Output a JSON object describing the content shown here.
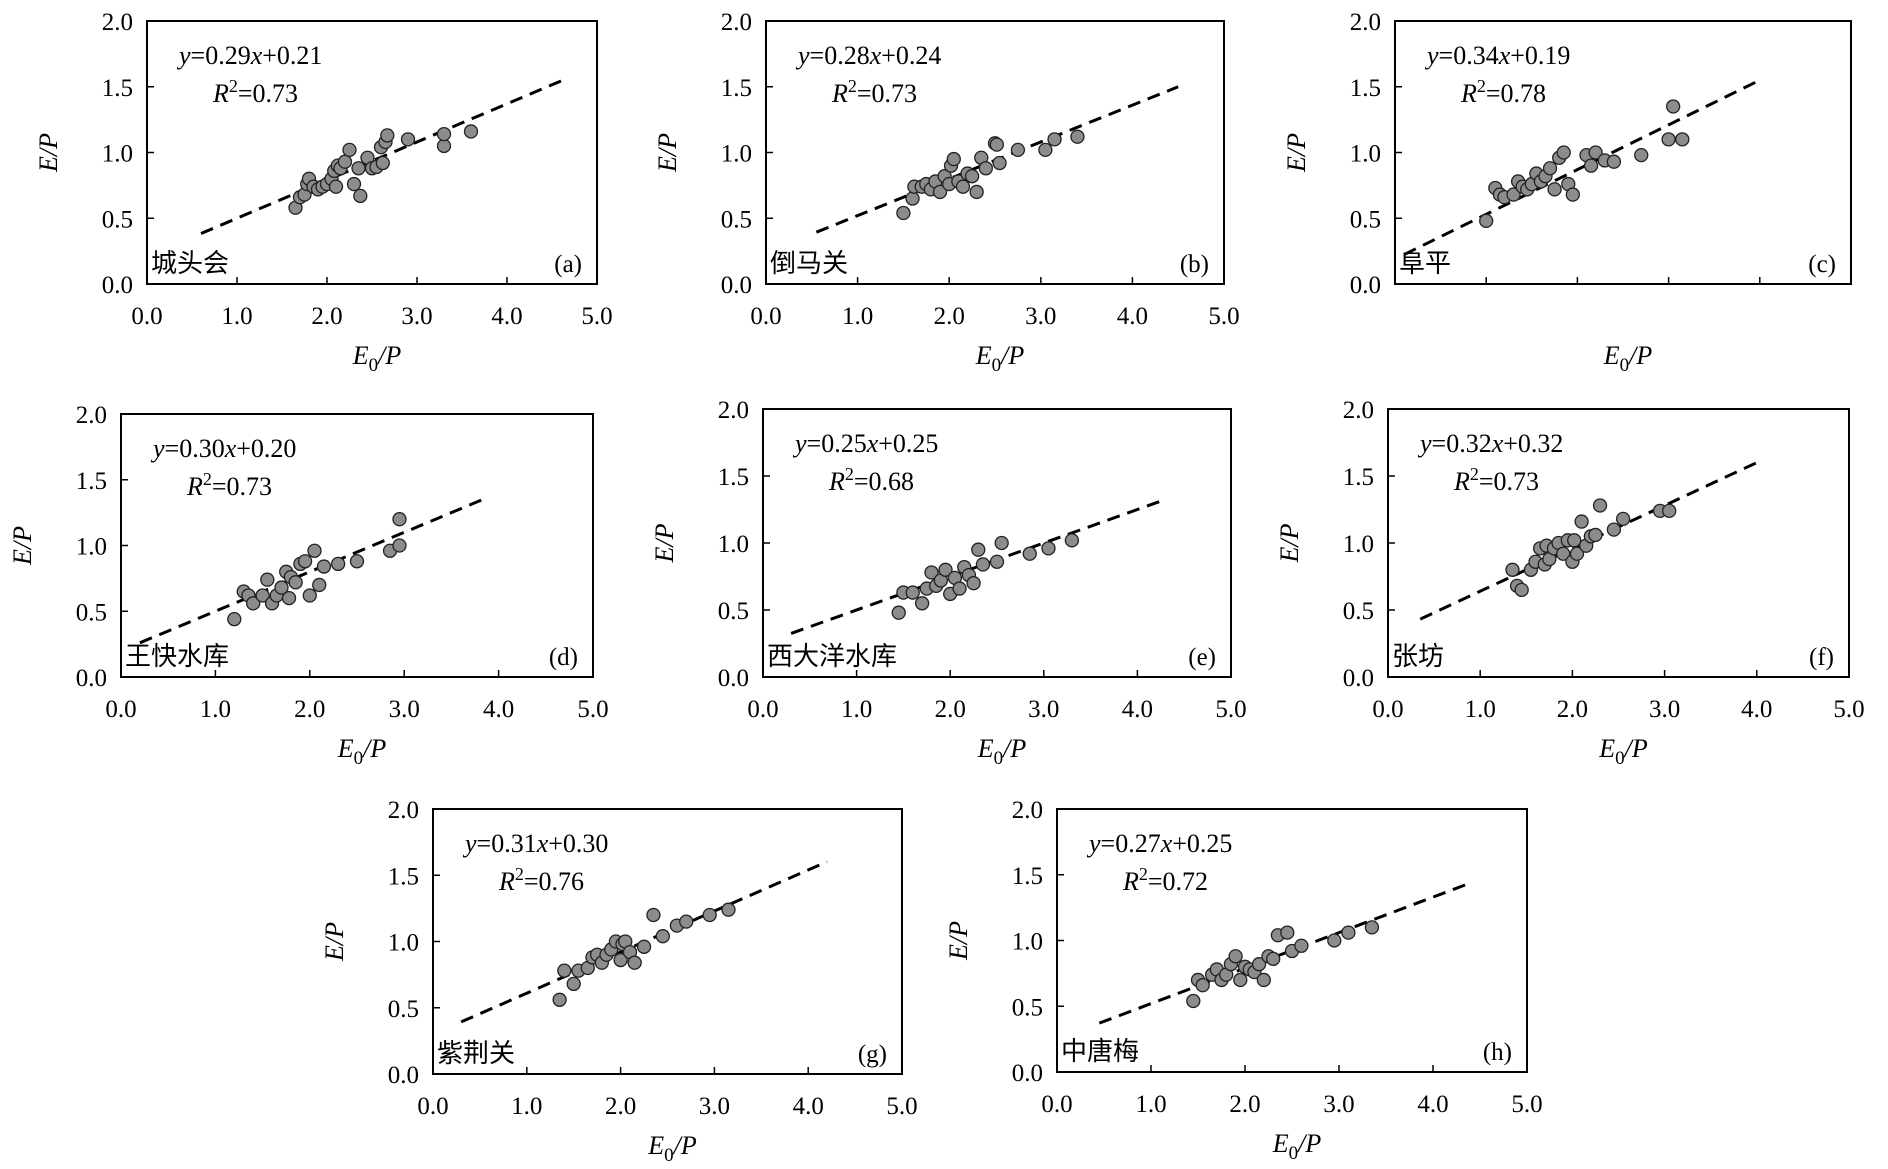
{
  "chart_data": [
    {
      "type": "scatter",
      "panel": "(a)",
      "site": "城头会",
      "equation": "y=0.29x+0.21",
      "r2": "R²=0.73",
      "slope": 0.29,
      "intercept": 0.21,
      "fit_x_range": [
        0.6,
        4.65
      ],
      "xlabel": "E₀/P",
      "ylabel": "E/P",
      "xlim": [
        0,
        5
      ],
      "ylim": [
        0,
        2
      ],
      "xticks": [
        "0.0",
        "1.0",
        "2.0",
        "3.0",
        "4.0",
        "5.0"
      ],
      "yticks": [
        "0.0",
        "0.5",
        "1.0",
        "1.5",
        "2.0"
      ],
      "points": [
        [
          1.65,
          0.58
        ],
        [
          1.7,
          0.66
        ],
        [
          1.75,
          0.68
        ],
        [
          1.78,
          0.76
        ],
        [
          1.8,
          0.8
        ],
        [
          1.85,
          0.74
        ],
        [
          1.9,
          0.72
        ],
        [
          1.95,
          0.74
        ],
        [
          2.0,
          0.76
        ],
        [
          2.05,
          0.8
        ],
        [
          2.08,
          0.86
        ],
        [
          2.1,
          0.74
        ],
        [
          2.12,
          0.9
        ],
        [
          2.15,
          0.88
        ],
        [
          2.2,
          0.93
        ],
        [
          2.25,
          1.02
        ],
        [
          2.3,
          0.76
        ],
        [
          2.35,
          0.88
        ],
        [
          2.37,
          0.67
        ],
        [
          2.45,
          0.96
        ],
        [
          2.5,
          0.88
        ],
        [
          2.55,
          0.89
        ],
        [
          2.6,
          1.04
        ],
        [
          2.62,
          0.92
        ],
        [
          2.65,
          1.08
        ],
        [
          2.67,
          1.13
        ],
        [
          2.9,
          1.1
        ],
        [
          3.3,
          1.05
        ],
        [
          3.3,
          1.14
        ],
        [
          3.6,
          1.16
        ]
      ]
    },
    {
      "type": "scatter",
      "panel": "(b)",
      "site": "倒马关",
      "equation": "y=0.28x+0.24",
      "r2": "R²=0.73",
      "slope": 0.28,
      "intercept": 0.24,
      "fit_x_range": [
        0.55,
        4.5
      ],
      "xlabel": "E₀/P",
      "ylabel": "E/P",
      "xlim": [
        0,
        5
      ],
      "ylim": [
        0,
        2
      ],
      "xticks": [
        "0.0",
        "1.0",
        "2.0",
        "3.0",
        "4.0",
        "5.0"
      ],
      "yticks": [
        "0.0",
        "0.5",
        "1.0",
        "1.5",
        "2.0"
      ],
      "points": [
        [
          1.5,
          0.54
        ],
        [
          1.6,
          0.65
        ],
        [
          1.62,
          0.74
        ],
        [
          1.7,
          0.74
        ],
        [
          1.75,
          0.76
        ],
        [
          1.8,
          0.72
        ],
        [
          1.85,
          0.78
        ],
        [
          1.9,
          0.7
        ],
        [
          1.95,
          0.82
        ],
        [
          2.0,
          0.76
        ],
        [
          2.02,
          0.9
        ],
        [
          2.05,
          0.95
        ],
        [
          2.1,
          0.78
        ],
        [
          2.15,
          0.74
        ],
        [
          2.2,
          0.84
        ],
        [
          2.25,
          0.82
        ],
        [
          2.3,
          0.7
        ],
        [
          2.35,
          0.96
        ],
        [
          2.4,
          0.88
        ],
        [
          2.5,
          1.07
        ],
        [
          2.52,
          1.06
        ],
        [
          2.55,
          0.92
        ],
        [
          2.75,
          1.02
        ],
        [
          3.05,
          1.02
        ],
        [
          3.15,
          1.1
        ],
        [
          3.4,
          1.12
        ]
      ]
    },
    {
      "type": "scatter",
      "panel": "(c)",
      "site": "阜平",
      "equation": "y=0.34x+0.19",
      "r2": "R²=0.78",
      "slope": 0.34,
      "intercept": 0.19,
      "fit_x_range": [
        0.1,
        4.0
      ],
      "xlabel": "E₀/P",
      "ylabel": "E/P",
      "xlim": [
        0,
        5
      ],
      "ylim": [
        0,
        2
      ],
      "xticks": [],
      "yticks": [
        "0.0",
        "0.5",
        "1.0",
        "1.5",
        "2.0"
      ],
      "points": [
        [
          1.0,
          0.48
        ],
        [
          1.1,
          0.73
        ],
        [
          1.15,
          0.68
        ],
        [
          1.2,
          0.66
        ],
        [
          1.3,
          0.68
        ],
        [
          1.35,
          0.78
        ],
        [
          1.4,
          0.74
        ],
        [
          1.45,
          0.72
        ],
        [
          1.5,
          0.76
        ],
        [
          1.55,
          0.84
        ],
        [
          1.6,
          0.78
        ],
        [
          1.65,
          0.82
        ],
        [
          1.7,
          0.88
        ],
        [
          1.75,
          0.72
        ],
        [
          1.8,
          0.96
        ],
        [
          1.85,
          1.0
        ],
        [
          1.9,
          0.76
        ],
        [
          1.95,
          0.68
        ],
        [
          2.1,
          0.98
        ],
        [
          2.15,
          0.9
        ],
        [
          2.2,
          1.0
        ],
        [
          2.3,
          0.94
        ],
        [
          2.4,
          0.93
        ],
        [
          2.7,
          0.98
        ],
        [
          3.0,
          1.1
        ],
        [
          3.05,
          1.35
        ],
        [
          3.15,
          1.1
        ]
      ]
    },
    {
      "type": "scatter",
      "panel": "(d)",
      "site": "王快水库",
      "equation": "y=0.30x+0.20",
      "r2": "R²=0.73",
      "slope": 0.3,
      "intercept": 0.2,
      "fit_x_range": [
        0.2,
        3.85
      ],
      "xlabel": "E₀/P",
      "ylabel": "E/P",
      "xlim": [
        0,
        5
      ],
      "ylim": [
        0,
        2
      ],
      "xticks": [
        "0.0",
        "1.0",
        "2.0",
        "3.0",
        "4.0",
        "5.0"
      ],
      "yticks": [
        "0.0",
        "0.5",
        "1.0",
        "1.5",
        "2.0"
      ],
      "points": [
        [
          1.2,
          0.44
        ],
        [
          1.3,
          0.65
        ],
        [
          1.35,
          0.62
        ],
        [
          1.4,
          0.56
        ],
        [
          1.5,
          0.62
        ],
        [
          1.55,
          0.74
        ],
        [
          1.6,
          0.56
        ],
        [
          1.65,
          0.62
        ],
        [
          1.7,
          0.68
        ],
        [
          1.75,
          0.8
        ],
        [
          1.78,
          0.6
        ],
        [
          1.8,
          0.76
        ],
        [
          1.85,
          0.72
        ],
        [
          1.9,
          0.86
        ],
        [
          1.95,
          0.88
        ],
        [
          2.0,
          0.62
        ],
        [
          2.05,
          0.96
        ],
        [
          2.1,
          0.7
        ],
        [
          2.15,
          0.84
        ],
        [
          2.3,
          0.86
        ],
        [
          2.5,
          0.88
        ],
        [
          2.85,
          0.96
        ],
        [
          2.95,
          1.0
        ],
        [
          2.95,
          1.2
        ]
      ]
    },
    {
      "type": "scatter",
      "panel": "(e)",
      "site": "西大洋水库",
      "equation": "y=0.25x+0.25",
      "r2": "R²=0.68",
      "slope": 0.25,
      "intercept": 0.25,
      "fit_x_range": [
        0.3,
        4.3
      ],
      "xlabel": "E₀/P",
      "ylabel": "E/P",
      "xlim": [
        0,
        5
      ],
      "ylim": [
        0,
        2
      ],
      "xticks": [
        "0.0",
        "1.0",
        "2.0",
        "3.0",
        "4.0",
        "5.0"
      ],
      "yticks": [
        "0.0",
        "0.5",
        "1.0",
        "1.5",
        "2.0"
      ],
      "points": [
        [
          1.45,
          0.48
        ],
        [
          1.5,
          0.63
        ],
        [
          1.6,
          0.63
        ],
        [
          1.7,
          0.55
        ],
        [
          1.75,
          0.66
        ],
        [
          1.8,
          0.78
        ],
        [
          1.85,
          0.68
        ],
        [
          1.9,
          0.72
        ],
        [
          1.95,
          0.8
        ],
        [
          2.0,
          0.62
        ],
        [
          2.05,
          0.74
        ],
        [
          2.1,
          0.66
        ],
        [
          2.15,
          0.82
        ],
        [
          2.2,
          0.76
        ],
        [
          2.25,
          0.7
        ],
        [
          2.3,
          0.95
        ],
        [
          2.35,
          0.84
        ],
        [
          2.5,
          0.86
        ],
        [
          2.55,
          1.0
        ],
        [
          2.85,
          0.92
        ],
        [
          3.05,
          0.96
        ],
        [
          3.3,
          1.02
        ]
      ]
    },
    {
      "type": "scatter",
      "panel": "(f)",
      "site": "张坊",
      "equation": "y=0.32x+0.32",
      "r2": "R²=0.73",
      "slope": 0.32,
      "intercept": 0.32,
      "fit_x_range": [
        0.35,
        4.0
      ],
      "xlabel": "E₀/P",
      "ylabel": "E/P",
      "xlim": [
        0,
        5
      ],
      "ylim": [
        0,
        2
      ],
      "xticks": [
        "0.0",
        "1.0",
        "2.0",
        "3.0",
        "4.0",
        "5.0"
      ],
      "yticks": [
        "0.0",
        "0.5",
        "1.0",
        "1.5",
        "2.0"
      ],
      "points": [
        [
          1.35,
          0.8
        ],
        [
          1.4,
          0.68
        ],
        [
          1.45,
          0.65
        ],
        [
          1.55,
          0.8
        ],
        [
          1.6,
          0.86
        ],
        [
          1.65,
          0.96
        ],
        [
          1.7,
          0.84
        ],
        [
          1.72,
          0.98
        ],
        [
          1.75,
          0.88
        ],
        [
          1.8,
          0.96
        ],
        [
          1.85,
          1.0
        ],
        [
          1.9,
          0.92
        ],
        [
          1.95,
          1.02
        ],
        [
          2.0,
          0.86
        ],
        [
          2.02,
          1.02
        ],
        [
          2.05,
          0.92
        ],
        [
          2.1,
          1.16
        ],
        [
          2.15,
          0.98
        ],
        [
          2.2,
          1.05
        ],
        [
          2.25,
          1.06
        ],
        [
          2.3,
          1.28
        ],
        [
          2.45,
          1.1
        ],
        [
          2.55,
          1.18
        ],
        [
          2.95,
          1.24
        ],
        [
          3.05,
          1.24
        ]
      ]
    },
    {
      "type": "scatter",
      "panel": "(g)",
      "site": "紫荆关",
      "equation": "y=0.31x+0.30",
      "r2": "R²=0.76",
      "slope": 0.31,
      "intercept": 0.3,
      "fit_x_range": [
        0.3,
        4.2
      ],
      "xlabel": "E₀/P",
      "ylabel": "E/P",
      "xlim": [
        0,
        5
      ],
      "ylim": [
        0,
        2
      ],
      "xticks": [
        "0.0",
        "1.0",
        "2.0",
        "3.0",
        "4.0",
        "5.0"
      ],
      "yticks": [
        "0.0",
        "0.5",
        "1.0",
        "1.5",
        "2.0"
      ],
      "points": [
        [
          1.35,
          0.56
        ],
        [
          1.4,
          0.78
        ],
        [
          1.5,
          0.68
        ],
        [
          1.55,
          0.78
        ],
        [
          1.65,
          0.8
        ],
        [
          1.7,
          0.88
        ],
        [
          1.75,
          0.9
        ],
        [
          1.8,
          0.84
        ],
        [
          1.85,
          0.9
        ],
        [
          1.9,
          0.94
        ],
        [
          1.95,
          1.0
        ],
        [
          2.0,
          0.86
        ],
        [
          2.02,
          0.98
        ],
        [
          2.05,
          1.0
        ],
        [
          2.1,
          0.92
        ],
        [
          2.15,
          0.84
        ],
        [
          2.25,
          0.96
        ],
        [
          2.35,
          1.2
        ],
        [
          2.45,
          1.04
        ],
        [
          2.6,
          1.12
        ],
        [
          2.7,
          1.15
        ],
        [
          2.95,
          1.2
        ],
        [
          3.15,
          1.24
        ]
      ]
    },
    {
      "type": "scatter",
      "panel": "(h)",
      "site": "中唐梅",
      "equation": "y=0.27x+0.25",
      "r2": "R²=0.72",
      "slope": 0.27,
      "intercept": 0.25,
      "fit_x_range": [
        0.45,
        4.4
      ],
      "xlabel": "E₀/P",
      "ylabel": "E/P",
      "xlim": [
        0,
        5
      ],
      "ylim": [
        0,
        2
      ],
      "xticks": [
        "0.0",
        "1.0",
        "2.0",
        "3.0",
        "4.0",
        "5.0"
      ],
      "yticks": [
        "0.0",
        "0.5",
        "1.0",
        "1.5",
        "2.0"
      ],
      "points": [
        [
          1.45,
          0.54
        ],
        [
          1.5,
          0.7
        ],
        [
          1.55,
          0.66
        ],
        [
          1.65,
          0.74
        ],
        [
          1.7,
          0.78
        ],
        [
          1.75,
          0.7
        ],
        [
          1.8,
          0.74
        ],
        [
          1.85,
          0.82
        ],
        [
          1.9,
          0.88
        ],
        [
          1.95,
          0.7
        ],
        [
          2.0,
          0.8
        ],
        [
          2.05,
          0.78
        ],
        [
          2.1,
          0.76
        ],
        [
          2.15,
          0.82
        ],
        [
          2.2,
          0.7
        ],
        [
          2.25,
          0.88
        ],
        [
          2.3,
          0.86
        ],
        [
          2.35,
          1.04
        ],
        [
          2.45,
          1.06
        ],
        [
          2.5,
          0.92
        ],
        [
          2.6,
          0.96
        ],
        [
          2.95,
          1.0
        ],
        [
          3.1,
          1.06
        ],
        [
          3.35,
          1.1
        ]
      ]
    }
  ]
}
